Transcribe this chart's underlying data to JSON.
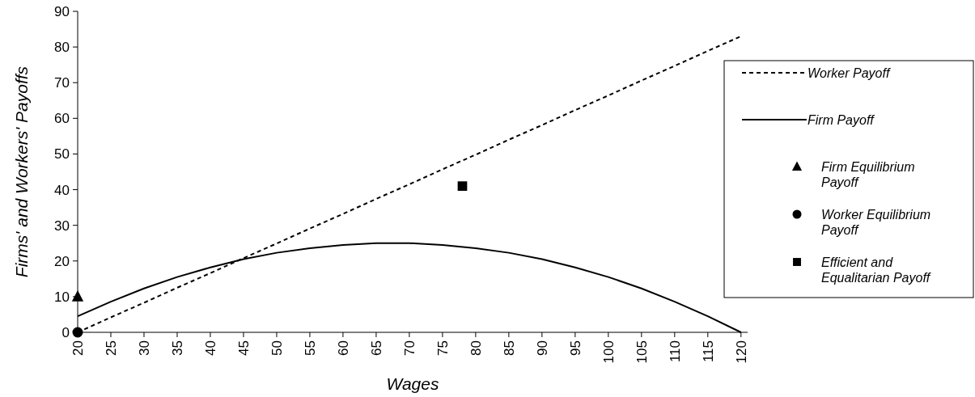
{
  "chart_data": {
    "type": "line",
    "xlabel": "Wages",
    "ylabel": "Firms' and Workers' Payoffs",
    "xlim": [
      20,
      121
    ],
    "xticks": [
      20,
      25,
      30,
      35,
      40,
      45,
      50,
      55,
      60,
      65,
      70,
      75,
      80,
      85,
      90,
      95,
      100,
      105,
      110,
      115,
      120
    ],
    "ylim": [
      0,
      90
    ],
    "yticks": [
      0,
      10,
      20,
      30,
      40,
      50,
      60,
      70,
      80,
      90
    ],
    "grid": false,
    "legend": "right",
    "series": [
      {
        "name": "Worker Payoff",
        "color": "#000000",
        "line_style": "dashed",
        "marker": "none",
        "x": [
          20,
          25,
          30,
          35,
          40,
          45,
          50,
          55,
          60,
          65,
          70,
          75,
          80,
          85,
          90,
          95,
          100,
          105,
          110,
          115,
          120
        ],
        "values": [
          0,
          4.2,
          8.3,
          12.5,
          16.6,
          20.8,
          24.9,
          29.1,
          33.2,
          37.4,
          41.5,
          45.7,
          49.8,
          54,
          58.1,
          62.3,
          66.4,
          70.6,
          74.7,
          78.9,
          83
        ]
      },
      {
        "name": "Firm Payoff",
        "color": "#000000",
        "line_style": "solid",
        "marker": "none",
        "x": [
          20,
          25,
          30,
          35,
          40,
          45,
          50,
          55,
          60,
          65,
          70,
          75,
          80,
          85,
          90,
          95,
          100,
          105,
          110,
          115,
          120
        ],
        "values": [
          4.5,
          8.6,
          12.3,
          15.5,
          18.2,
          20.5,
          22.3,
          23.6,
          24.5,
          25,
          25,
          24.5,
          23.6,
          22.3,
          20.5,
          18.2,
          15.5,
          12.3,
          8.6,
          4.5,
          0
        ]
      },
      {
        "name": "Firm Equilibrium Payoff",
        "type": "scatter",
        "color": "#000000",
        "marker": "triangle",
        "x": [
          20
        ],
        "values": [
          10
        ]
      },
      {
        "name": "Worker Equilibrium Payoff",
        "type": "scatter",
        "color": "#000000",
        "marker": "circle",
        "x": [
          20
        ],
        "values": [
          0
        ]
      },
      {
        "name": "Efficient and Equalitarian Payoff",
        "type": "scatter",
        "color": "#000000",
        "marker": "square",
        "x": [
          78
        ],
        "values": [
          41
        ]
      }
    ]
  }
}
